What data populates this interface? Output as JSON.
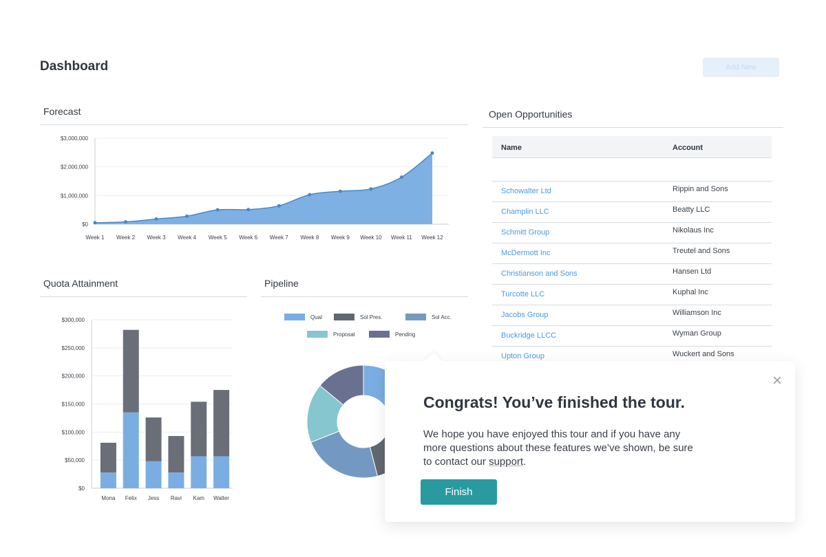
{
  "header": {
    "title": "Dashboard",
    "add_new_label": "Add New"
  },
  "forecast": {
    "title": "Forecast",
    "chart_data": {
      "type": "area",
      "title": "Forecast",
      "categories": [
        "Week 1",
        "Week 2",
        "Week 3",
        "Week 4",
        "Week 5",
        "Week 6",
        "Week 7",
        "Week 8",
        "Week 9",
        "Week 10",
        "Week 11",
        "Week 12"
      ],
      "values": [
        50000,
        80000,
        180000,
        280000,
        500000,
        510000,
        640000,
        1030000,
        1150000,
        1230000,
        1640000,
        2480000
      ],
      "y_ticks": [
        "$0",
        "$1,000,000",
        "$2,000,000",
        "$3,000,000"
      ],
      "ylim": [
        0,
        3000000
      ],
      "color": "#7eb0e3",
      "line_color": "#4a87c8"
    }
  },
  "quota": {
    "title": "Quota Attainment",
    "chart_data": {
      "type": "bar",
      "stacked": true,
      "categories": [
        "Mona",
        "Felix",
        "Jess",
        "Ravi",
        "Kam",
        "Walter"
      ],
      "series": [
        {
          "values": [
            28000,
            135000,
            48000,
            28000,
            57000,
            57000
          ],
          "color": "#7aaee2"
        },
        {
          "values": [
            53000,
            147000,
            78000,
            65000,
            97000,
            118000
          ],
          "color": "#6a6e77"
        }
      ],
      "y_ticks": [
        "$0",
        "$50,000",
        "$100,000",
        "$150,000",
        "$200,000",
        "$250,000",
        "$300,000"
      ],
      "ylim": [
        0,
        300000
      ]
    }
  },
  "pipeline": {
    "title": "Pipeline",
    "chart_data": {
      "type": "pie",
      "donut": true,
      "legend": [
        {
          "name": "Qual",
          "color": "#7aaee2"
        },
        {
          "name": "Sol Pres.",
          "color": "#626870"
        },
        {
          "name": "Sol Acc.",
          "color": "#7399c2"
        },
        {
          "name": "Proposal",
          "color": "#86c6cf"
        },
        {
          "name": "Pending",
          "color": "#6a7190"
        }
      ],
      "slices": [
        {
          "name": "Qual",
          "value": 25,
          "color": "#7aaee2"
        },
        {
          "name": "Sol Pres.",
          "value": 21,
          "color": "#626870"
        },
        {
          "name": "Sol Acc.",
          "value": 23,
          "color": "#7399c2"
        },
        {
          "name": "Proposal",
          "value": 17,
          "color": "#86c6cf"
        },
        {
          "name": "Pending",
          "value": 14,
          "color": "#6a7190"
        }
      ]
    }
  },
  "opportunities": {
    "title": "Open Opportunities",
    "columns": [
      "Name",
      "Account"
    ],
    "rows": [
      {
        "name": "Schowalter Ltd",
        "account": "Rippin and Sons"
      },
      {
        "name": "Champlin LLC",
        "account": "Beatty LLC"
      },
      {
        "name": "Schmitt Group",
        "account": "Nikolaus Inc"
      },
      {
        "name": "McDermott Inc",
        "account": "Treutel and Sons"
      },
      {
        "name": "Christianson and Sons",
        "account": "Hansen Ltd"
      },
      {
        "name": "Turcotte LLC",
        "account": "Kuphal Inc"
      },
      {
        "name": "Jacobs Group",
        "account": "Williamson Inc"
      },
      {
        "name": "Buckridge LLCC",
        "account": "Wyman Group"
      },
      {
        "name": "Upton Group",
        "account": "Wuckert and Sons"
      }
    ]
  },
  "tour": {
    "title": "Congrats! You’ve finished the tour.",
    "body_line1": "We hope you have enjoyed this tour and if you have any",
    "body_line2": "more questions about these features we’ve shown, be sure",
    "body_line3_prefix": "to contact our ",
    "support_link": "support",
    "body_line3_suffix": ".",
    "close_icon": "close-icon",
    "finish_label": "Finish",
    "accent": "#2a9aa1"
  }
}
